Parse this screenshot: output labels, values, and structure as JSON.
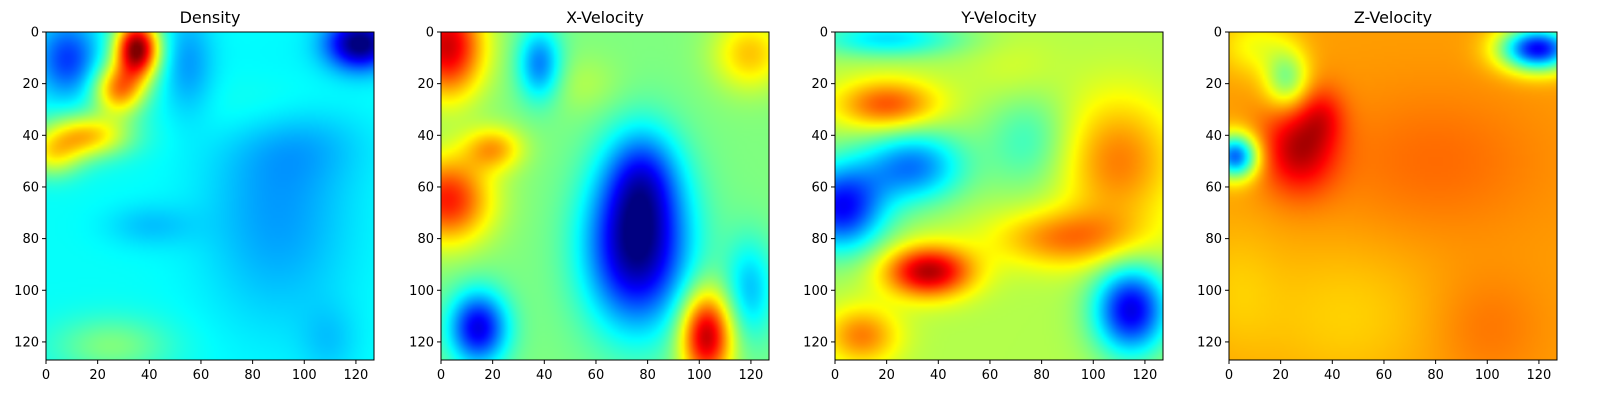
{
  "chart_data": [
    {
      "type": "heatmap",
      "title": "Density",
      "colormap": "jet",
      "xlim": [
        0,
        127
      ],
      "ylim": [
        127,
        0
      ],
      "xticks": [
        0,
        20,
        40,
        60,
        80,
        100,
        120
      ],
      "yticks": [
        0,
        20,
        40,
        60,
        80,
        100,
        120
      ],
      "base": 0.38,
      "blobs": [
        {
          "x": 35,
          "y": 6,
          "sx": 6,
          "sy": 8,
          "v": 0.62
        },
        {
          "x": 28,
          "y": 22,
          "sx": 7,
          "sy": 7,
          "v": 0.35
        },
        {
          "x": 15,
          "y": 40,
          "sx": 12,
          "sy": 6,
          "v": 0.3
        },
        {
          "x": 2,
          "y": 48,
          "sx": 8,
          "sy": 6,
          "v": 0.2
        },
        {
          "x": 8,
          "y": 10,
          "sx": 8,
          "sy": 10,
          "v": -0.2
        },
        {
          "x": 55,
          "y": 12,
          "sx": 7,
          "sy": 14,
          "v": -0.1
        },
        {
          "x": 122,
          "y": 4,
          "sx": 9,
          "sy": 7,
          "v": -0.4
        },
        {
          "x": 90,
          "y": 70,
          "sx": 20,
          "sy": 30,
          "v": -0.1
        },
        {
          "x": 100,
          "y": 40,
          "sx": 18,
          "sy": 12,
          "v": -0.06
        },
        {
          "x": 25,
          "y": 122,
          "sx": 16,
          "sy": 8,
          "v": 0.12
        },
        {
          "x": 90,
          "y": 30,
          "sx": 20,
          "sy": 10,
          "v": 0.06
        },
        {
          "x": 40,
          "y": 75,
          "sx": 12,
          "sy": 6,
          "v": -0.06
        },
        {
          "x": 110,
          "y": 120,
          "sx": 8,
          "sy": 10,
          "v": -0.05
        }
      ]
    },
    {
      "type": "heatmap",
      "title": "X-Velocity",
      "colormap": "jet",
      "xlim": [
        0,
        127
      ],
      "ylim": [
        127,
        0
      ],
      "xticks": [
        0,
        20,
        40,
        60,
        80,
        100,
        120
      ],
      "yticks": [
        0,
        20,
        40,
        60,
        80,
        100,
        120
      ],
      "base": 0.5,
      "blobs": [
        {
          "x": 76,
          "y": 83,
          "sx": 14,
          "sy": 22,
          "v": -0.5
        },
        {
          "x": 78,
          "y": 55,
          "sx": 10,
          "sy": 14,
          "v": -0.2
        },
        {
          "x": 2,
          "y": 5,
          "sx": 10,
          "sy": 14,
          "v": 0.42
        },
        {
          "x": 2,
          "y": 65,
          "sx": 12,
          "sy": 12,
          "v": 0.35
        },
        {
          "x": 20,
          "y": 45,
          "sx": 8,
          "sy": 6,
          "v": 0.2
        },
        {
          "x": 103,
          "y": 118,
          "sx": 7,
          "sy": 12,
          "v": 0.45
        },
        {
          "x": 14,
          "y": 115,
          "sx": 8,
          "sy": 10,
          "v": -0.4
        },
        {
          "x": 38,
          "y": 12,
          "sx": 6,
          "sy": 10,
          "v": -0.25
        },
        {
          "x": 120,
          "y": 8,
          "sx": 10,
          "sy": 10,
          "v": 0.18
        },
        {
          "x": 120,
          "y": 100,
          "sx": 7,
          "sy": 14,
          "v": -0.18
        },
        {
          "x": 55,
          "y": 20,
          "sx": 10,
          "sy": 8,
          "v": 0.05
        }
      ]
    },
    {
      "type": "heatmap",
      "title": "Y-Velocity",
      "colormap": "jet",
      "xlim": [
        0,
        127
      ],
      "ylim": [
        127,
        0
      ],
      "xticks": [
        0,
        20,
        40,
        60,
        80,
        100,
        120
      ],
      "yticks": [
        0,
        20,
        40,
        60,
        80,
        100,
        120
      ],
      "base": 0.55,
      "blobs": [
        {
          "x": 36,
          "y": 93,
          "sx": 12,
          "sy": 7,
          "v": 0.4
        },
        {
          "x": 20,
          "y": 28,
          "sx": 14,
          "sy": 7,
          "v": 0.25
        },
        {
          "x": 2,
          "y": 68,
          "sx": 12,
          "sy": 12,
          "v": -0.42
        },
        {
          "x": 30,
          "y": 52,
          "sx": 14,
          "sy": 10,
          "v": -0.3
        },
        {
          "x": 115,
          "y": 108,
          "sx": 10,
          "sy": 12,
          "v": -0.45
        },
        {
          "x": 20,
          "y": 2,
          "sx": 20,
          "sy": 5,
          "v": -0.2
        },
        {
          "x": 75,
          "y": 42,
          "sx": 12,
          "sy": 14,
          "v": -0.12
        },
        {
          "x": 110,
          "y": 50,
          "sx": 16,
          "sy": 18,
          "v": 0.2
        },
        {
          "x": 90,
          "y": 80,
          "sx": 20,
          "sy": 8,
          "v": 0.2
        },
        {
          "x": 10,
          "y": 118,
          "sx": 10,
          "sy": 8,
          "v": 0.2
        },
        {
          "x": 70,
          "y": 15,
          "sx": 12,
          "sy": 10,
          "v": 0.04
        }
      ]
    },
    {
      "type": "heatmap",
      "title": "Z-Velocity",
      "colormap": "jet",
      "xlim": [
        0,
        127
      ],
      "ylim": [
        127,
        0
      ],
      "xticks": [
        0,
        20,
        40,
        60,
        80,
        100,
        120
      ],
      "yticks": [
        0,
        20,
        40,
        60,
        80,
        100,
        120
      ],
      "base": 0.72,
      "blobs": [
        {
          "x": 27,
          "y": 45,
          "sx": 10,
          "sy": 12,
          "v": 0.22
        },
        {
          "x": 36,
          "y": 32,
          "sx": 6,
          "sy": 8,
          "v": 0.1
        },
        {
          "x": 2,
          "y": 48,
          "sx": 6,
          "sy": 6,
          "v": -0.5
        },
        {
          "x": 22,
          "y": 18,
          "sx": 6,
          "sy": 8,
          "v": -0.22
        },
        {
          "x": 120,
          "y": 6,
          "sx": 10,
          "sy": 6,
          "v": -0.6
        },
        {
          "x": 80,
          "y": 50,
          "sx": 30,
          "sy": 20,
          "v": 0.05
        },
        {
          "x": 100,
          "y": 115,
          "sx": 15,
          "sy": 15,
          "v": 0.04
        },
        {
          "x": 45,
          "y": 110,
          "sx": 25,
          "sy": 20,
          "v": -0.05
        },
        {
          "x": 2,
          "y": 100,
          "sx": 12,
          "sy": 18,
          "v": -0.04
        },
        {
          "x": 10,
          "y": 5,
          "sx": 10,
          "sy": 8,
          "v": -0.1
        }
      ]
    }
  ]
}
